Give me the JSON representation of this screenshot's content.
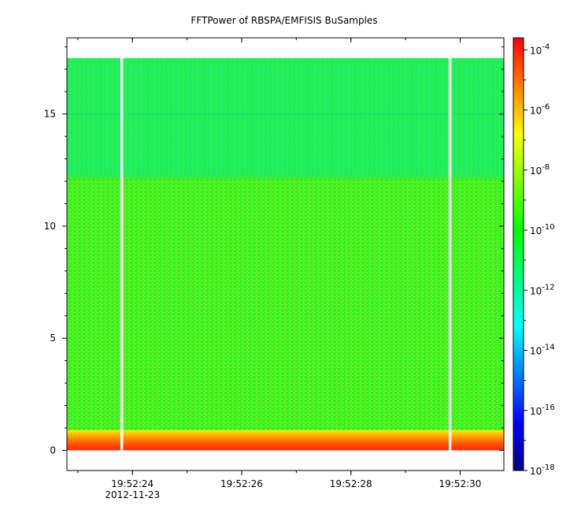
{
  "chart_data": {
    "type": "heatmap",
    "title": "FFTPower of RBSPA/EMFISIS  BuSamples",
    "xlabel": "",
    "ylabel": "",
    "x_ticks": [
      {
        "value": "2012-11-23T19:52:24",
        "label": "19:52:24",
        "sublabel": "2012-11-23"
      },
      {
        "value": "2012-11-23T19:52:26",
        "label": "19:52:26",
        "sublabel": ""
      },
      {
        "value": "2012-11-23T19:52:28",
        "label": "19:52:28",
        "sublabel": ""
      },
      {
        "value": "2012-11-23T19:52:30",
        "label": "19:52:30",
        "sublabel": ""
      }
    ],
    "xlim": [
      "2012-11-23T19:52:22.8",
      "2012-11-23T19:52:30.8"
    ],
    "y_ticks": [
      0,
      5,
      10,
      15
    ],
    "ylim": [
      -0.9,
      18.4
    ],
    "data_gaps": [
      [
        "2012-11-23T19:52:23.78",
        "2012-11-23T19:52:23.83"
      ],
      [
        "2012-11-23T19:52:29.79",
        "2012-11-23T19:52:29.84"
      ]
    ],
    "bands": [
      {
        "y_range": [
          0,
          0.35
        ],
        "log_power": -6.5
      },
      {
        "y_range": [
          0.35,
          0.9
        ],
        "log_power": -7.6
      },
      {
        "y_range": [
          0.9,
          12.2
        ],
        "log_power": -10.4
      },
      {
        "y_range": [
          12.2,
          17.5
        ],
        "log_power": -11.6
      }
    ],
    "colorbar": {
      "scale": "log",
      "range": [
        -18,
        -3.6
      ],
      "ticks": [
        {
          "exp": -4,
          "base": "10",
          "sup": "-4"
        },
        {
          "exp": -6,
          "base": "10",
          "sup": "-6"
        },
        {
          "exp": -8,
          "base": "10",
          "sup": "-8"
        },
        {
          "exp": -10,
          "base": "10",
          "sup": "-10"
        },
        {
          "exp": -12,
          "base": "10",
          "sup": "-12"
        },
        {
          "exp": -14,
          "base": "10",
          "sup": "-14"
        },
        {
          "exp": -16,
          "base": "10",
          "sup": "-16"
        },
        {
          "exp": -18,
          "base": "10",
          "sup": "-18"
        }
      ],
      "colormap": [
        "#000080",
        "#0000ff",
        "#0080ff",
        "#00ffff",
        "#00ff80",
        "#00ff00",
        "#80ff00",
        "#ffff00",
        "#ff8000",
        "#ff0000"
      ]
    }
  }
}
